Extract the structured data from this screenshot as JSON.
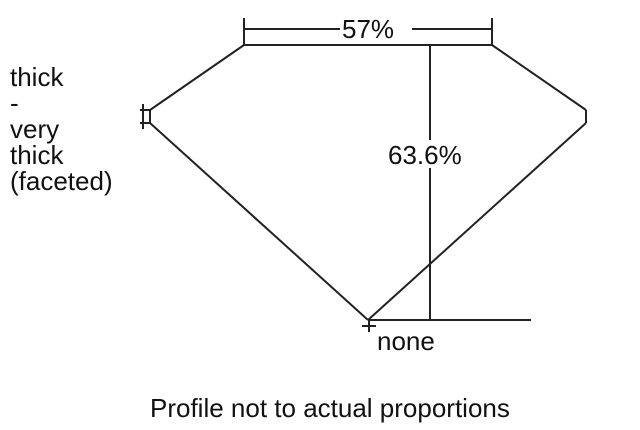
{
  "diagram": {
    "girdle_label": [
      "thick",
      "-",
      "very",
      "thick",
      "(faceted)"
    ],
    "table_width_label": "57%",
    "total_depth_label": "63.6%",
    "culet_label": "none",
    "caption": "Profile not to actual proportions"
  }
}
